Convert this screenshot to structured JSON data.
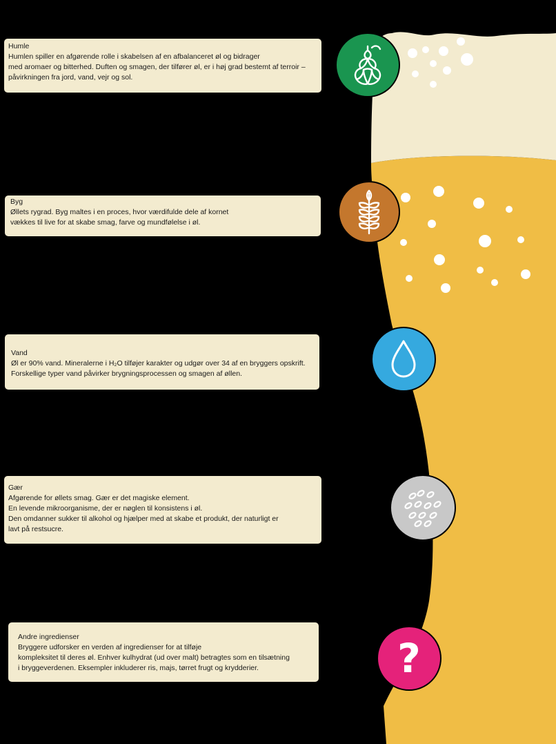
{
  "colors": {
    "background": "#000000",
    "card": "#f3ebcf",
    "foam": "#f3ebcf",
    "beer": "#f0bd45",
    "hops": "#1a9550",
    "barley": "#c4772d",
    "water": "#35a9df",
    "yeast": "#c8c8c8",
    "other": "#e5227a"
  },
  "ingredients": [
    {
      "key": "hops",
      "icon": "hop-icon",
      "title": "Humle",
      "lines": [
        "Humlen spiller en afgørende rolle i skabelsen af en afbalanceret øl og bidrager",
        "med aromaer og bitterhed. Duften og smagen, der tilfører øl, er i høj grad bestemt af terroir –",
        "påvirkningen fra jord, vand, vejr og sol."
      ]
    },
    {
      "key": "barley",
      "icon": "wheat-icon",
      "title": "Byg",
      "lines": [
        "Øllets rygrad. Byg maltes i en proces, hvor værdifulde dele af kornet",
        "vækkes til live for at skabe smag, farve og mundfølelse i øl."
      ]
    },
    {
      "key": "water",
      "icon": "water-drop-icon",
      "title": "Vand",
      "lines": [
        "Øl er 90% vand. Mineralerne i H₂O tilføjer karakter og udgør over 34 af en bryggers opskrift.",
        "Forskellige typer vand påvirker brygningsprocessen og smagen af øllen."
      ]
    },
    {
      "key": "yeast",
      "icon": "yeast-icon",
      "title": "Gær",
      "lines": [
        "Afgørende for øllets smag. Gær er det magiske element.",
        "En levende mikroorganisme, der er nøglen til konsistens i øl.",
        "Den omdanner sukker til alkohol og hjælper med at skabe et produkt, der naturligt er",
        "lavt på restsucre."
      ]
    },
    {
      "key": "other",
      "icon": "question-mark-icon",
      "title": "Andre ingredienser",
      "lines": [
        "Bryggere udforsker en verden af ingredienser for at tilføje",
        "kompleksitet til deres øl. Enhver kulhydrat (ud over malt) betragtes som en tilsætning",
        "i bryggeverdenen. Eksempler inkluderer ris, majs, tørret frugt og krydderier."
      ]
    }
  ],
  "question_glyph": "?"
}
